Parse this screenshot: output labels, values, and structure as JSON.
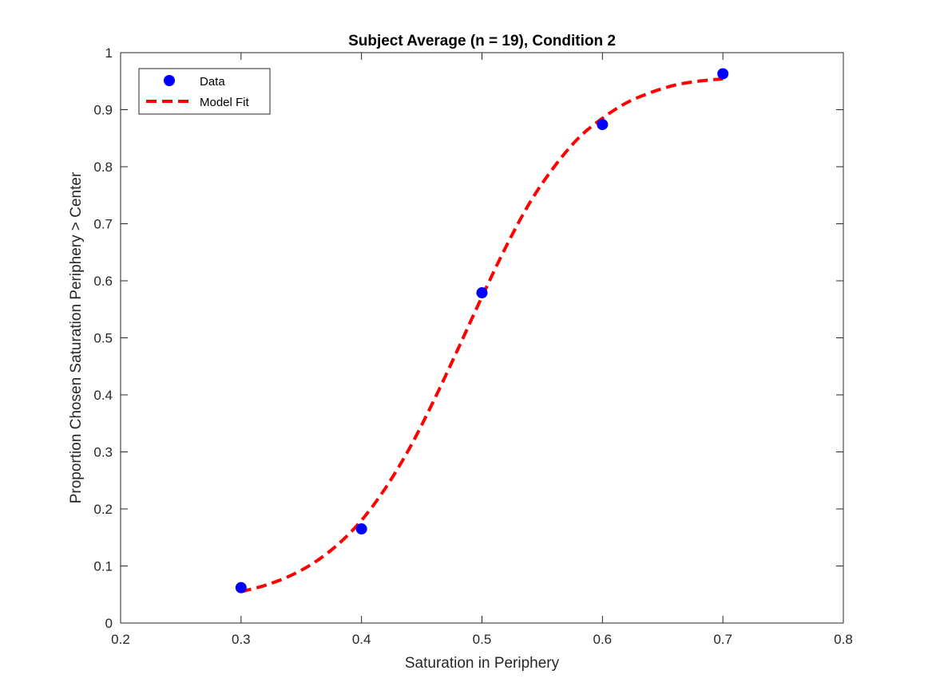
{
  "chart_data": {
    "type": "scatter",
    "title": "Subject Average (n = 19), Condition 2",
    "xlabel": "Saturation in Periphery",
    "ylabel": "Proportion Chosen Saturation Periphery > Center",
    "xlim": [
      0.2,
      0.8
    ],
    "ylim": [
      0,
      1
    ],
    "xticks": [
      "0.2",
      "0.3",
      "0.4",
      "0.5",
      "0.6",
      "0.7",
      "0.8"
    ],
    "yticks": [
      "0",
      "0.1",
      "0.2",
      "0.3",
      "0.4",
      "0.5",
      "0.6",
      "0.7",
      "0.8",
      "0.9",
      "1"
    ],
    "grid": false,
    "legend_position": "top-left",
    "series": [
      {
        "name": "Data",
        "kind": "markers",
        "color": "#0000FF",
        "x": [
          0.3,
          0.4,
          0.5,
          0.6,
          0.7
        ],
        "y": [
          0.062,
          0.165,
          0.579,
          0.874,
          0.963
        ]
      },
      {
        "name": "Model Fit",
        "kind": "dashed-line",
        "color": "#FF0000",
        "x": [
          0.3,
          0.32,
          0.34,
          0.36,
          0.38,
          0.4,
          0.42,
          0.44,
          0.46,
          0.48,
          0.5,
          0.52,
          0.54,
          0.56,
          0.58,
          0.6,
          0.62,
          0.64,
          0.66,
          0.68,
          0.7
        ],
        "y": [
          0.055,
          0.066,
          0.082,
          0.105,
          0.137,
          0.18,
          0.237,
          0.307,
          0.39,
          0.48,
          0.572,
          0.66,
          0.738,
          0.8,
          0.85,
          0.885,
          0.912,
          0.93,
          0.943,
          0.95,
          0.954
        ]
      }
    ]
  }
}
